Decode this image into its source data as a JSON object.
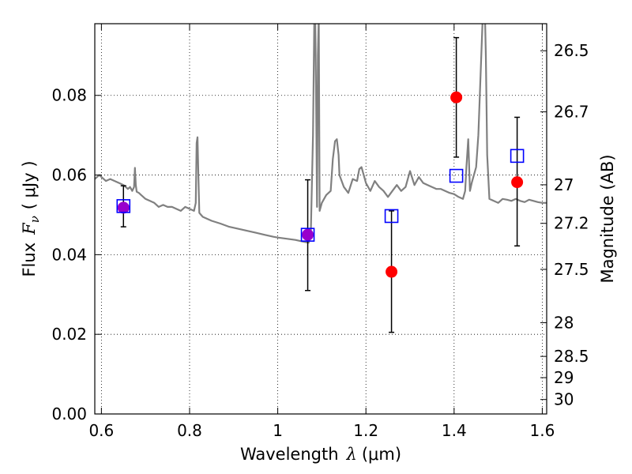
{
  "chart_data": {
    "type": "scatter",
    "title": "",
    "xlabel": {
      "prefix": "Wavelength",
      "symbol": "λ",
      "unit": "(μm)"
    },
    "ylabel": {
      "prefix": "Flux",
      "symbol": "F",
      "subscript": "ν",
      "unit": "( μJy )"
    },
    "ylabel_right": "Magnitude (AB)",
    "xlim": [
      0.585,
      1.61
    ],
    "ylim": [
      0.0,
      0.098
    ],
    "grid": true,
    "x_ticks": [
      {
        "value": 0.6,
        "label": "0.6"
      },
      {
        "value": 0.8,
        "label": "0.8"
      },
      {
        "value": 1.0,
        "label": "1"
      },
      {
        "value": 1.2,
        "label": "1.2"
      },
      {
        "value": 1.4,
        "label": "1.4"
      },
      {
        "value": 1.6,
        "label": "1.6"
      }
    ],
    "y_ticks": [
      {
        "value": 0.0,
        "label": "0.00"
      },
      {
        "value": 0.02,
        "label": "0.02"
      },
      {
        "value": 0.04,
        "label": "0.04"
      },
      {
        "value": 0.06,
        "label": "0.06"
      },
      {
        "value": 0.08,
        "label": "0.08"
      }
    ],
    "magnitude_ticks": [
      {
        "value": 26.5,
        "label": "26.5"
      },
      {
        "value": 26.7,
        "label": "26.7"
      },
      {
        "value": 27.0,
        "label": "27"
      },
      {
        "value": 27.2,
        "label": "27.2"
      },
      {
        "value": 27.5,
        "label": "27.5"
      },
      {
        "value": 28.0,
        "label": "28"
      },
      {
        "value": 28.5,
        "label": "28.5"
      },
      {
        "value": 29.0,
        "label": "29"
      },
      {
        "value": 30.0,
        "label": "30"
      }
    ],
    "series": [
      {
        "kind": "model_spectrum",
        "color": "#808080",
        "x": [
          0.585,
          0.595,
          0.6,
          0.61,
          0.62,
          0.63,
          0.64,
          0.65,
          0.66,
          0.665,
          0.67,
          0.674,
          0.676,
          0.678,
          0.68,
          0.685,
          0.69,
          0.7,
          0.71,
          0.72,
          0.73,
          0.74,
          0.75,
          0.76,
          0.77,
          0.78,
          0.79,
          0.8,
          0.81,
          0.814,
          0.816,
          0.818,
          0.82,
          0.822,
          0.826,
          0.83,
          0.84,
          0.85,
          0.87,
          0.89,
          0.91,
          0.93,
          0.95,
          0.97,
          0.99,
          1.0,
          1.02,
          1.04,
          1.06,
          1.07,
          1.075,
          1.08,
          1.083,
          1.085,
          1.087,
          1.089,
          1.091,
          1.093,
          1.095,
          1.1,
          1.11,
          1.12,
          1.125,
          1.13,
          1.134,
          1.138,
          1.14,
          1.15,
          1.16,
          1.17,
          1.18,
          1.185,
          1.19,
          1.195,
          1.2,
          1.21,
          1.22,
          1.23,
          1.24,
          1.25,
          1.26,
          1.27,
          1.28,
          1.29,
          1.3,
          1.31,
          1.32,
          1.33,
          1.34,
          1.35,
          1.36,
          1.37,
          1.38,
          1.39,
          1.4,
          1.41,
          1.42,
          1.425,
          1.428,
          1.432,
          1.436,
          1.44,
          1.45,
          1.455,
          1.46,
          1.465,
          1.47,
          1.472,
          1.475,
          1.48,
          1.49,
          1.5,
          1.51,
          1.52,
          1.53,
          1.54,
          1.55,
          1.56,
          1.57,
          1.58,
          1.59,
          1.6,
          1.61
        ],
        "y": [
          0.059,
          0.06,
          0.0595,
          0.0585,
          0.059,
          0.0585,
          0.058,
          0.0575,
          0.0565,
          0.057,
          0.056,
          0.057,
          0.0618,
          0.0575,
          0.0558,
          0.0555,
          0.055,
          0.054,
          0.0535,
          0.053,
          0.052,
          0.0525,
          0.052,
          0.052,
          0.0515,
          0.051,
          0.052,
          0.0515,
          0.051,
          0.053,
          0.068,
          0.0695,
          0.06,
          0.0505,
          0.05,
          0.0495,
          0.049,
          0.0485,
          0.0478,
          0.047,
          0.0465,
          0.046,
          0.0455,
          0.045,
          0.0445,
          0.0443,
          0.044,
          0.0437,
          0.0432,
          0.043,
          0.045,
          0.07,
          0.1,
          0.1,
          0.08,
          0.052,
          0.09,
          0.1,
          0.051,
          0.053,
          0.055,
          0.056,
          0.064,
          0.0685,
          0.069,
          0.065,
          0.06,
          0.057,
          0.0555,
          0.059,
          0.0585,
          0.0615,
          0.062,
          0.06,
          0.058,
          0.056,
          0.0585,
          0.057,
          0.056,
          0.0545,
          0.056,
          0.0575,
          0.056,
          0.057,
          0.061,
          0.0575,
          0.0595,
          0.058,
          0.0575,
          0.057,
          0.0565,
          0.0565,
          0.056,
          0.0555,
          0.0552,
          0.0545,
          0.054,
          0.056,
          0.062,
          0.069,
          0.056,
          0.058,
          0.062,
          0.07,
          0.085,
          0.1,
          0.1,
          0.09,
          0.065,
          0.054,
          0.0535,
          0.053,
          0.054,
          0.0538,
          0.0535,
          0.054,
          0.0535,
          0.0532,
          0.0538,
          0.0535,
          0.0532,
          0.053,
          0.053
        ]
      },
      {
        "kind": "observed",
        "marker": "circle",
        "color": "#ff0000",
        "x": [
          0.65,
          1.068,
          1.258,
          1.405,
          1.543
        ],
        "y": [
          0.0518,
          0.045,
          0.0357,
          0.0795,
          0.0582
        ],
        "yerr_low": [
          0.047,
          0.031,
          0.0205,
          0.0645,
          0.0422
        ],
        "yerr_high": [
          0.0573,
          0.0588,
          0.051,
          0.0945,
          0.0745
        ]
      },
      {
        "kind": "model_synthetic",
        "marker": "open-square",
        "color": "#0000ff",
        "x": [
          0.65,
          1.068,
          1.258,
          1.405,
          1.543
        ],
        "y": [
          0.0522,
          0.045,
          0.0497,
          0.0598,
          0.0648
        ]
      }
    ],
    "overlap_color": "#9900cc"
  }
}
